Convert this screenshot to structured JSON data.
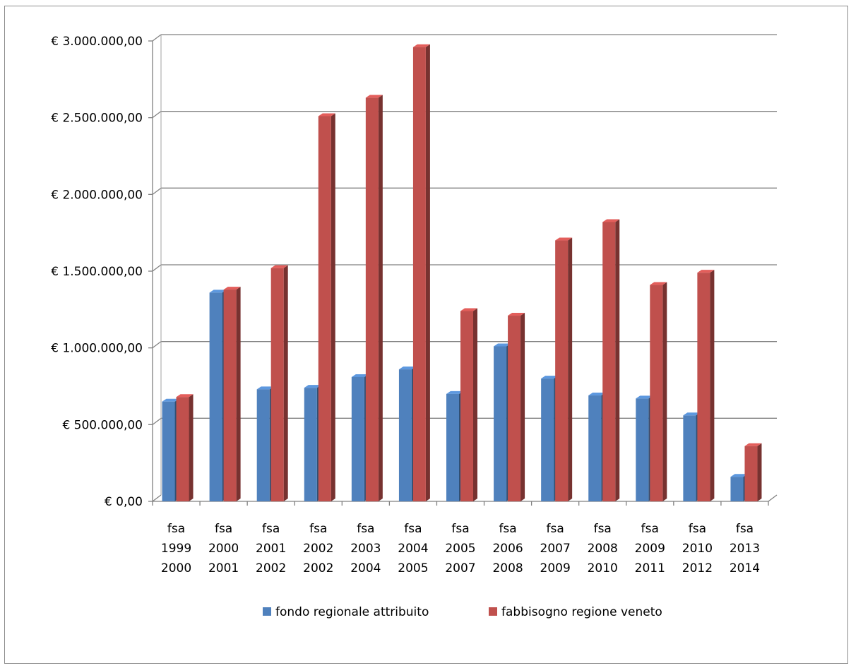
{
  "chart_data": {
    "type": "bar",
    "title": "",
    "xlabel": "",
    "ylabel": "",
    "ylim": [
      0,
      3000000
    ],
    "y_ticks": [
      0,
      500000,
      1000000,
      1500000,
      2000000,
      2500000,
      3000000
    ],
    "y_tick_labels": [
      "€ 0,00",
      "€ 500.000,00",
      "€ 1.000.000,00",
      "€ 1.500.000,00",
      "€ 2.000.000,00",
      "€ 2.500.000,00",
      "€ 3.000.000,00"
    ],
    "categories": [
      [
        "fsa",
        "1999",
        "2000"
      ],
      [
        "fsa",
        "2000",
        "2001"
      ],
      [
        "fsa",
        "2001",
        "2002"
      ],
      [
        "fsa",
        "2002",
        "2002"
      ],
      [
        "fsa",
        "2003",
        "2004"
      ],
      [
        "fsa",
        "2004",
        "2005"
      ],
      [
        "fsa",
        "2005",
        "2007"
      ],
      [
        "fsa",
        "2006",
        "2008"
      ],
      [
        "fsa",
        "2007",
        "2009"
      ],
      [
        "fsa",
        "2008",
        "2010"
      ],
      [
        "fsa",
        "2009",
        "2011"
      ],
      [
        "fsa",
        "2010",
        "2012"
      ],
      [
        "fsa",
        "2013",
        "2014"
      ]
    ],
    "series": [
      {
        "name": "fondo regionale attribuito",
        "color": "#4f81bd",
        "values": [
          650000,
          1360000,
          730000,
          740000,
          810000,
          860000,
          700000,
          1010000,
          800000,
          690000,
          670000,
          560000,
          160000
        ]
      },
      {
        "name": "fabbisogno regione veneto",
        "color": "#c0504d",
        "values": [
          680000,
          1380000,
          1520000,
          2510000,
          2630000,
          2960000,
          1240000,
          1210000,
          1700000,
          1820000,
          1410000,
          1490000,
          360000
        ]
      }
    ],
    "grid": true,
    "legend_position": "bottom",
    "style": "3d-clustered-column"
  }
}
